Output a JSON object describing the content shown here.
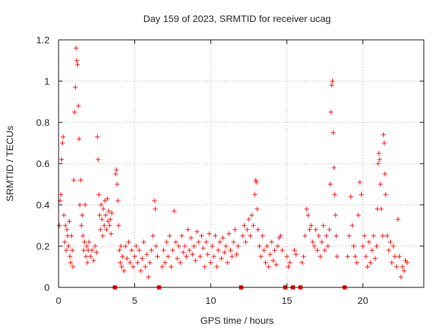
{
  "chart_data": {
    "type": "scatter",
    "title": "Day 159 of 2023, SRMTID for receiver ucag",
    "xlabel": "GPS time / hours",
    "ylabel": "SRMTID / TECUs",
    "xlim": [
      0,
      24
    ],
    "ylim": [
      0,
      1.2
    ],
    "xticks": [
      0,
      5,
      10,
      15,
      20
    ],
    "xtick_labels": [
      "0",
      "5",
      "10",
      "15",
      "20"
    ],
    "yticks": [
      0,
      0.2,
      0.4,
      0.6,
      0.8,
      1.0,
      1.2
    ],
    "ytick_labels": [
      "0",
      "0.2",
      "0.4",
      "0.6",
      "0.8",
      "1",
      "1.2"
    ],
    "grid": true,
    "marker": "+",
    "color": "#ff0000",
    "zero_markers_x": [
      3.7,
      6.6,
      12.0,
      14.9,
      15.4,
      15.9,
      18.8
    ],
    "series": [
      {
        "name": "SRMTID",
        "points": [
          [
            0.05,
            0.3
          ],
          [
            0.1,
            0.42
          ],
          [
            0.15,
            0.45
          ],
          [
            0.2,
            0.62
          ],
          [
            0.25,
            0.7
          ],
          [
            0.3,
            0.73
          ],
          [
            0.35,
            0.35
          ],
          [
            0.4,
            0.22
          ],
          [
            0.45,
            0.3
          ],
          [
            0.5,
            0.18
          ],
          [
            0.55,
            0.28
          ],
          [
            0.6,
            0.25
          ],
          [
            0.65,
            0.2
          ],
          [
            0.7,
            0.32
          ],
          [
            0.75,
            0.15
          ],
          [
            0.8,
            0.12
          ],
          [
            0.85,
            0.25
          ],
          [
            0.9,
            0.18
          ],
          [
            0.95,
            0.1
          ],
          [
            1.0,
            0.52
          ],
          [
            1.05,
            0.85
          ],
          [
            1.1,
            0.97
          ],
          [
            1.15,
            1.16
          ],
          [
            1.2,
            1.1
          ],
          [
            1.25,
            1.08
          ],
          [
            1.3,
            0.88
          ],
          [
            1.35,
            0.72
          ],
          [
            1.4,
            0.4
          ],
          [
            1.45,
            0.52
          ],
          [
            1.5,
            0.3
          ],
          [
            1.55,
            0.35
          ],
          [
            1.6,
            0.25
          ],
          [
            1.65,
            0.18
          ],
          [
            1.7,
            0.22
          ],
          [
            1.75,
            0.4
          ],
          [
            1.8,
            0.15
          ],
          [
            1.85,
            0.2
          ],
          [
            1.9,
            0.12
          ],
          [
            1.95,
            0.18
          ],
          [
            2.0,
            0.22
          ],
          [
            2.1,
            0.15
          ],
          [
            2.2,
            0.18
          ],
          [
            2.3,
            0.13
          ],
          [
            2.4,
            0.2
          ],
          [
            2.5,
            0.17
          ],
          [
            2.55,
            0.73
          ],
          [
            2.6,
            0.62
          ],
          [
            2.65,
            0.45
          ],
          [
            2.7,
            0.35
          ],
          [
            2.75,
            0.28
          ],
          [
            2.8,
            0.4
          ],
          [
            2.85,
            0.33
          ],
          [
            2.9,
            0.25
          ],
          [
            2.95,
            0.38
          ],
          [
            3.0,
            0.3
          ],
          [
            3.05,
            0.42
          ],
          [
            3.1,
            0.35
          ],
          [
            3.15,
            0.28
          ],
          [
            3.2,
            0.43
          ],
          [
            3.25,
            0.32
          ],
          [
            3.3,
            0.37
          ],
          [
            3.35,
            0.3
          ],
          [
            3.4,
            0.33
          ],
          [
            3.45,
            0.26
          ],
          [
            3.5,
            0.36
          ],
          [
            3.75,
            0.55
          ],
          [
            3.8,
            0.57
          ],
          [
            3.85,
            0.5
          ],
          [
            3.9,
            0.42
          ],
          [
            3.95,
            0.3
          ],
          [
            4.0,
            0.18
          ],
          [
            4.05,
            0.12
          ],
          [
            4.1,
            0.2
          ],
          [
            4.15,
            0.1
          ],
          [
            4.2,
            0.15
          ],
          [
            4.3,
            0.08
          ],
          [
            4.4,
            0.2
          ],
          [
            4.5,
            0.14
          ],
          [
            4.6,
            0.22
          ],
          [
            4.7,
            0.12
          ],
          [
            4.8,
            0.18
          ],
          [
            4.9,
            0.1
          ],
          [
            5.0,
            0.15
          ],
          [
            5.1,
            0.2
          ],
          [
            5.2,
            0.12
          ],
          [
            5.3,
            0.18
          ],
          [
            5.4,
            0.08
          ],
          [
            5.5,
            0.14
          ],
          [
            5.6,
            0.22
          ],
          [
            5.7,
            0.1
          ],
          [
            5.8,
            0.16
          ],
          [
            5.9,
            0.05
          ],
          [
            6.0,
            0.12
          ],
          [
            6.1,
            0.18
          ],
          [
            6.2,
            0.25
          ],
          [
            6.3,
            0.42
          ],
          [
            6.35,
            0.38
          ],
          [
            6.4,
            0.2
          ],
          [
            6.5,
            0.15
          ],
          [
            6.8,
            0.1
          ],
          [
            6.9,
            0.18
          ],
          [
            7.0,
            0.12
          ],
          [
            7.1,
            0.22
          ],
          [
            7.2,
            0.15
          ],
          [
            7.3,
            0.25
          ],
          [
            7.4,
            0.1
          ],
          [
            7.5,
            0.18
          ],
          [
            7.6,
            0.37
          ],
          [
            7.7,
            0.22
          ],
          [
            7.8,
            0.14
          ],
          [
            7.9,
            0.2
          ],
          [
            8.0,
            0.12
          ],
          [
            8.1,
            0.25
          ],
          [
            8.2,
            0.17
          ],
          [
            8.3,
            0.2
          ],
          [
            8.4,
            0.15
          ],
          [
            8.5,
            0.28
          ],
          [
            8.6,
            0.18
          ],
          [
            8.7,
            0.24
          ],
          [
            8.8,
            0.16
          ],
          [
            8.9,
            0.2
          ],
          [
            9.0,
            0.13
          ],
          [
            9.1,
            0.27
          ],
          [
            9.2,
            0.22
          ],
          [
            9.3,
            0.15
          ],
          [
            9.4,
            0.25
          ],
          [
            9.5,
            0.19
          ],
          [
            9.6,
            0.1
          ],
          [
            9.7,
            0.22
          ],
          [
            9.8,
            0.16
          ],
          [
            9.9,
            0.26
          ],
          [
            10.0,
            0.12
          ],
          [
            10.1,
            0.2
          ],
          [
            10.2,
            0.15
          ],
          [
            10.3,
            0.25
          ],
          [
            10.4,
            0.1
          ],
          [
            10.5,
            0.18
          ],
          [
            10.6,
            0.22
          ],
          [
            10.7,
            0.14
          ],
          [
            10.8,
            0.24
          ],
          [
            10.9,
            0.17
          ],
          [
            11.0,
            0.2
          ],
          [
            11.1,
            0.12
          ],
          [
            11.2,
            0.26
          ],
          [
            11.3,
            0.18
          ],
          [
            11.4,
            0.15
          ],
          [
            11.5,
            0.22
          ],
          [
            11.6,
            0.28
          ],
          [
            11.7,
            0.16
          ],
          [
            11.8,
            0.2
          ],
          [
            12.1,
            0.25
          ],
          [
            12.2,
            0.3
          ],
          [
            12.3,
            0.22
          ],
          [
            12.4,
            0.28
          ],
          [
            12.5,
            0.33
          ],
          [
            12.6,
            0.25
          ],
          [
            12.7,
            0.35
          ],
          [
            12.8,
            0.3
          ],
          [
            12.9,
            0.45
          ],
          [
            12.95,
            0.52
          ],
          [
            13.0,
            0.51
          ],
          [
            13.05,
            0.38
          ],
          [
            13.1,
            0.28
          ],
          [
            13.2,
            0.2
          ],
          [
            13.3,
            0.15
          ],
          [
            13.4,
            0.25
          ],
          [
            13.5,
            0.18
          ],
          [
            13.6,
            0.12
          ],
          [
            13.7,
            0.2
          ],
          [
            13.8,
            0.1
          ],
          [
            13.9,
            0.16
          ],
          [
            14.0,
            0.22
          ],
          [
            14.1,
            0.13
          ],
          [
            14.2,
            0.18
          ],
          [
            14.3,
            0.11
          ],
          [
            14.4,
            0.2
          ],
          [
            14.5,
            0.24
          ],
          [
            14.6,
            0.25
          ],
          [
            14.7,
            0.18
          ],
          [
            15.0,
            0.15
          ],
          [
            15.1,
            0.1
          ],
          [
            15.2,
            0.12
          ],
          [
            15.5,
            0.18
          ],
          [
            15.6,
            0.16
          ],
          [
            16.0,
            0.12
          ],
          [
            16.1,
            0.15
          ],
          [
            16.2,
            0.25
          ],
          [
            16.3,
            0.38
          ],
          [
            16.4,
            0.35
          ],
          [
            16.5,
            0.28
          ],
          [
            16.6,
            0.3
          ],
          [
            16.7,
            0.22
          ],
          [
            16.8,
            0.2
          ],
          [
            16.9,
            0.28
          ],
          [
            17.0,
            0.18
          ],
          [
            17.1,
            0.25
          ],
          [
            17.2,
            0.15
          ],
          [
            17.3,
            0.22
          ],
          [
            17.4,
            0.3
          ],
          [
            17.5,
            0.18
          ],
          [
            17.6,
            0.25
          ],
          [
            17.7,
            0.2
          ],
          [
            17.8,
            0.28
          ],
          [
            17.85,
            0.5
          ],
          [
            17.9,
            0.85
          ],
          [
            17.95,
            0.98
          ],
          [
            18.0,
            1.0
          ],
          [
            18.05,
            0.75
          ],
          [
            18.1,
            0.58
          ],
          [
            18.15,
            0.45
          ],
          [
            18.2,
            0.35
          ],
          [
            18.25,
            0.25
          ],
          [
            18.3,
            0.15
          ],
          [
            19.0,
            0.15
          ],
          [
            19.1,
            0.25
          ],
          [
            19.2,
            0.44
          ],
          [
            19.3,
            0.3
          ],
          [
            19.4,
            0.2
          ],
          [
            19.5,
            0.15
          ],
          [
            19.6,
            0.12
          ],
          [
            19.7,
            0.35
          ],
          [
            19.8,
            0.51
          ],
          [
            19.9,
            0.45
          ],
          [
            20.0,
            0.2
          ],
          [
            20.1,
            0.25
          ],
          [
            20.2,
            0.15
          ],
          [
            20.3,
            0.1
          ],
          [
            20.4,
            0.22
          ],
          [
            20.5,
            0.12
          ],
          [
            20.6,
            0.18
          ],
          [
            20.7,
            0.25
          ],
          [
            20.8,
            0.14
          ],
          [
            20.9,
            0.2
          ],
          [
            20.95,
            0.38
          ],
          [
            21.0,
            0.6
          ],
          [
            21.05,
            0.65
          ],
          [
            21.1,
            0.62
          ],
          [
            21.15,
            0.5
          ],
          [
            21.2,
            0.38
          ],
          [
            21.3,
            0.25
          ],
          [
            21.35,
            0.74
          ],
          [
            21.4,
            0.7
          ],
          [
            21.45,
            0.55
          ],
          [
            21.5,
            0.45
          ],
          [
            21.6,
            0.25
          ],
          [
            21.7,
            0.18
          ],
          [
            21.8,
            0.22
          ],
          [
            21.9,
            0.12
          ],
          [
            22.0,
            0.2
          ],
          [
            22.1,
            0.15
          ],
          [
            22.2,
            0.1
          ],
          [
            22.3,
            0.33
          ],
          [
            22.4,
            0.15
          ],
          [
            22.5,
            0.05
          ],
          [
            22.6,
            0.1
          ],
          [
            22.7,
            0.08
          ],
          [
            22.8,
            0.13
          ],
          [
            22.9,
            0.12
          ]
        ]
      }
    ]
  }
}
